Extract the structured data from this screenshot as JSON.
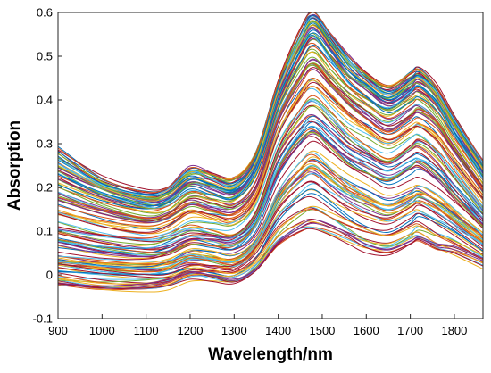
{
  "chart_data": {
    "type": "line",
    "title": "",
    "xlabel": "Wavelength/nm",
    "ylabel": "Absorption",
    "xlim": [
      900,
      1865
    ],
    "ylim": [
      -0.1,
      0.6
    ],
    "xticks": [
      900,
      1000,
      1100,
      1200,
      1300,
      1400,
      1500,
      1600,
      1700,
      1800
    ],
    "yticks": [
      -0.1,
      0,
      0.1,
      0.2,
      0.3,
      0.4,
      0.5,
      0.6
    ],
    "xtick_labels": [
      "900",
      "1000",
      "1100",
      "1200",
      "1300",
      "1400",
      "1500",
      "1600",
      "1700",
      "1800"
    ],
    "ytick_labels": [
      "-0.1",
      "0",
      "0.1",
      "0.2",
      "0.3",
      "0.4",
      "0.5",
      "0.6"
    ],
    "grid": false,
    "legend": "none",
    "palette": [
      "#0072BD",
      "#D95319",
      "#EDB120",
      "#7E2F8E",
      "#77AC30",
      "#4DBEEE",
      "#A2142F"
    ],
    "x": [
      900,
      1000,
      1100,
      1150,
      1200,
      1250,
      1300,
      1350,
      1400,
      1450,
      1480,
      1520,
      1560,
      1600,
      1650,
      1700,
      1720,
      1760,
      1800,
      1865
    ],
    "series_count": 120,
    "series": [
      {
        "values": [
          0.29,
          0.22,
          0.19,
          0.2,
          0.245,
          0.23,
          0.22,
          0.28,
          0.44,
          0.56,
          0.6,
          0.55,
          0.5,
          0.46,
          0.43,
          0.46,
          0.47,
          0.43,
          0.36,
          0.26
        ]
      },
      {
        "values": [
          0.25,
          0.2,
          0.17,
          0.18,
          0.22,
          0.21,
          0.2,
          0.26,
          0.42,
          0.53,
          0.57,
          0.52,
          0.47,
          0.44,
          0.41,
          0.44,
          0.45,
          0.41,
          0.34,
          0.24
        ]
      },
      {
        "values": [
          0.17,
          0.14,
          0.12,
          0.13,
          0.16,
          0.15,
          0.145,
          0.2,
          0.35,
          0.44,
          0.47,
          0.43,
          0.39,
          0.36,
          0.33,
          0.36,
          0.37,
          0.34,
          0.28,
          0.19
        ]
      },
      {
        "values": [
          0.1,
          0.08,
          0.07,
          0.08,
          0.1,
          0.095,
          0.09,
          0.14,
          0.28,
          0.36,
          0.385,
          0.35,
          0.31,
          0.285,
          0.26,
          0.29,
          0.3,
          0.27,
          0.22,
          0.14
        ]
      },
      {
        "values": [
          0.03,
          0.02,
          0.015,
          0.02,
          0.04,
          0.035,
          0.03,
          0.07,
          0.17,
          0.23,
          0.25,
          0.22,
          0.19,
          0.17,
          0.15,
          0.17,
          0.18,
          0.16,
          0.13,
          0.08
        ]
      },
      {
        "values": [
          -0.02,
          -0.03,
          -0.03,
          -0.025,
          -0.01,
          -0.015,
          -0.02,
          0.01,
          0.07,
          0.1,
          0.105,
          0.09,
          0.07,
          0.05,
          0.045,
          0.07,
          0.08,
          0.06,
          0.05,
          0.02
        ]
      }
    ]
  }
}
